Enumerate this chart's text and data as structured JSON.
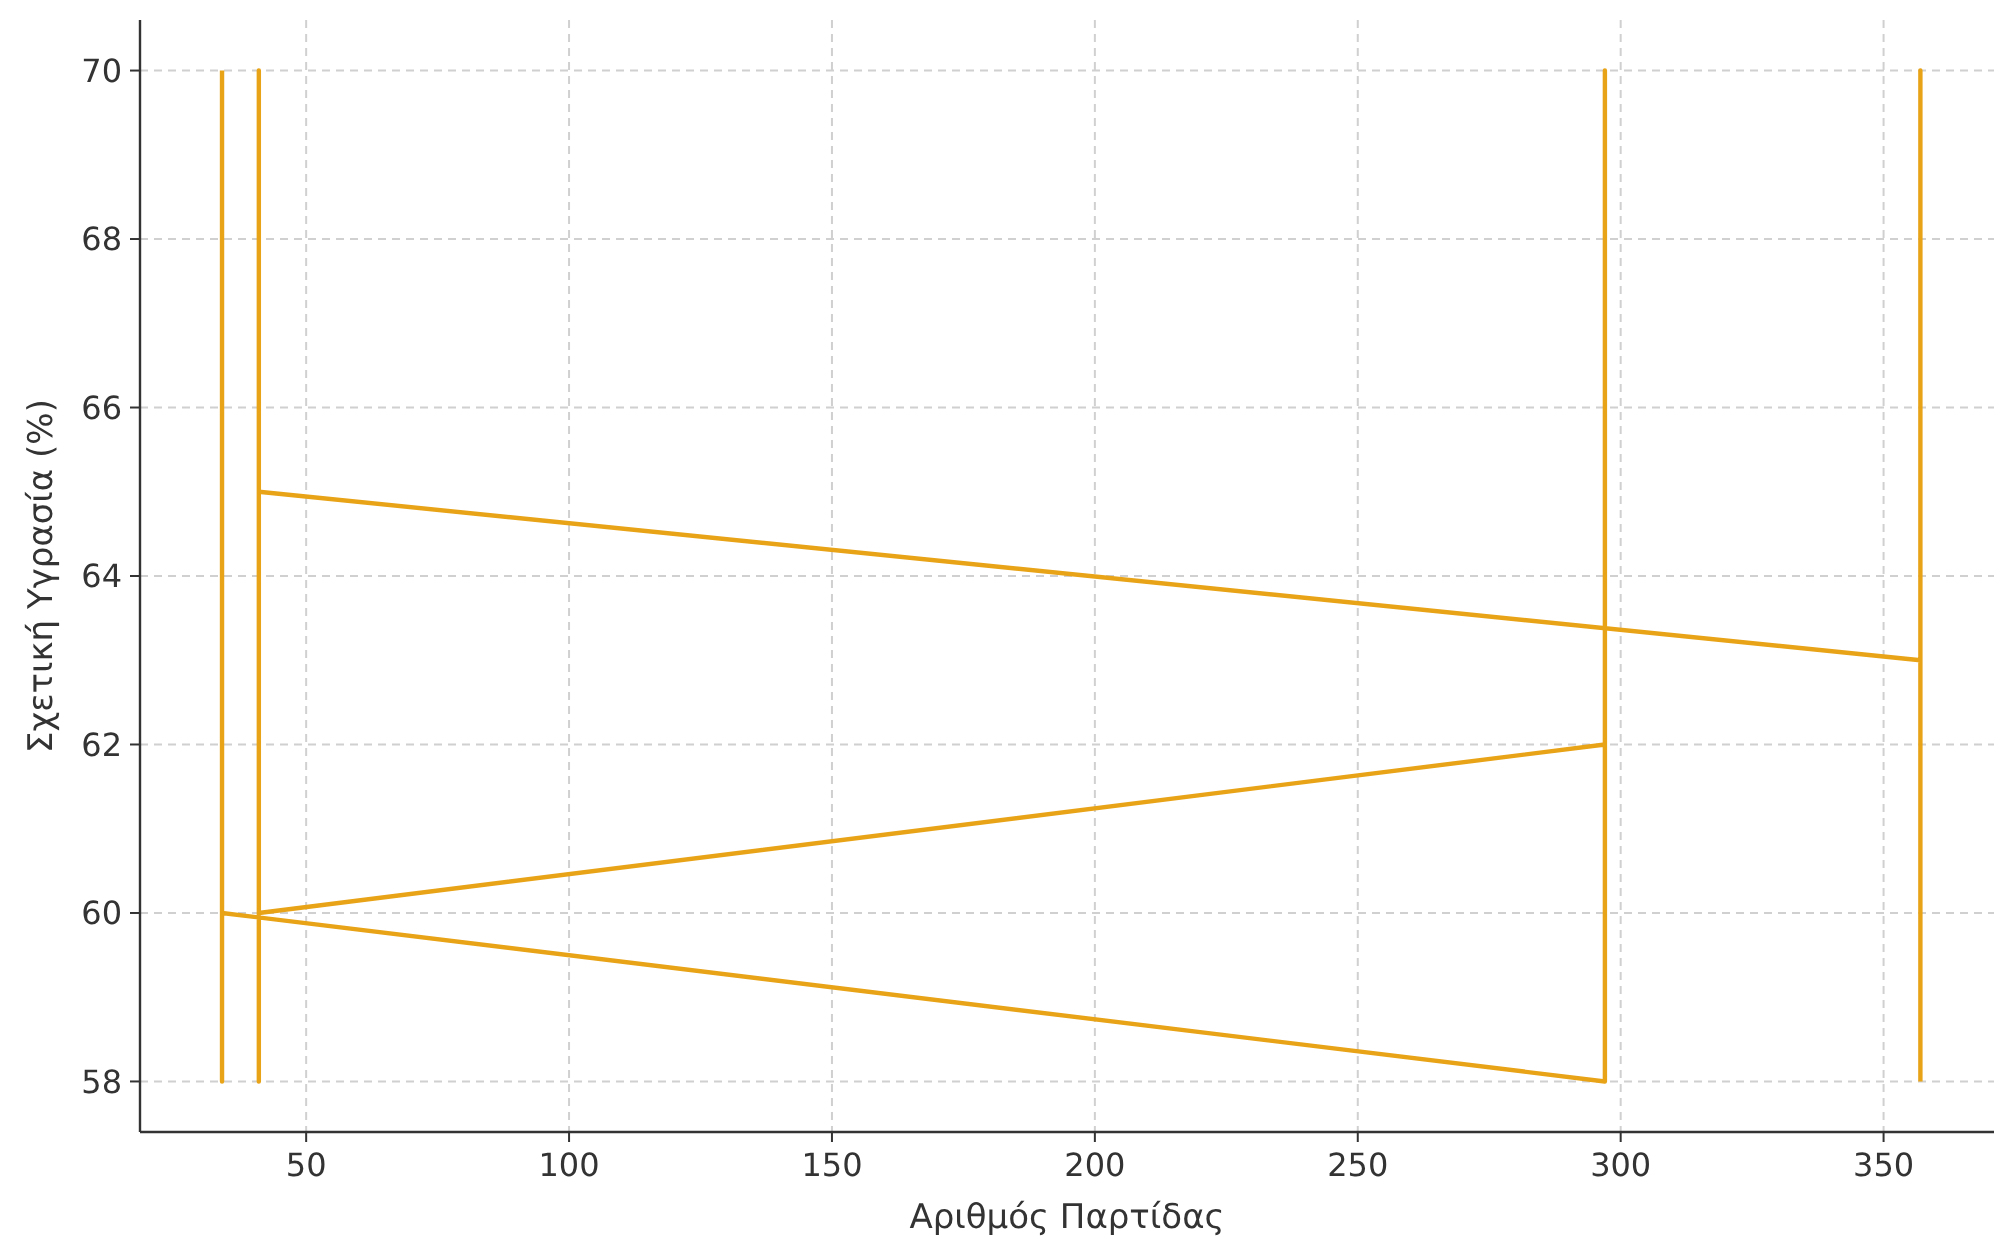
{
  "chart_data": {
    "type": "line",
    "xlabel": "Αριθμός Παρτίδας",
    "ylabel": "Σχετική Υγρασία (%)",
    "xlim": [
      18.4,
      371
    ],
    "ylim": [
      57.4,
      70.6
    ],
    "xticks": [
      50,
      100,
      150,
      200,
      250,
      300,
      350
    ],
    "yticks": [
      58,
      60,
      62,
      64,
      66,
      68,
      70
    ],
    "grid": true,
    "line_style": "solid",
    "series": [
      {
        "color": "#e8a317",
        "x": [
          34,
          34,
          34,
          34,
          34,
          297,
          297,
          297,
          297,
          41,
          41,
          41,
          41,
          357,
          357,
          357
        ],
        "values": [
          70,
          58,
          63,
          67,
          60,
          58,
          70,
          67,
          62,
          60,
          58,
          70,
          65,
          63,
          70,
          58
        ]
      }
    ]
  }
}
